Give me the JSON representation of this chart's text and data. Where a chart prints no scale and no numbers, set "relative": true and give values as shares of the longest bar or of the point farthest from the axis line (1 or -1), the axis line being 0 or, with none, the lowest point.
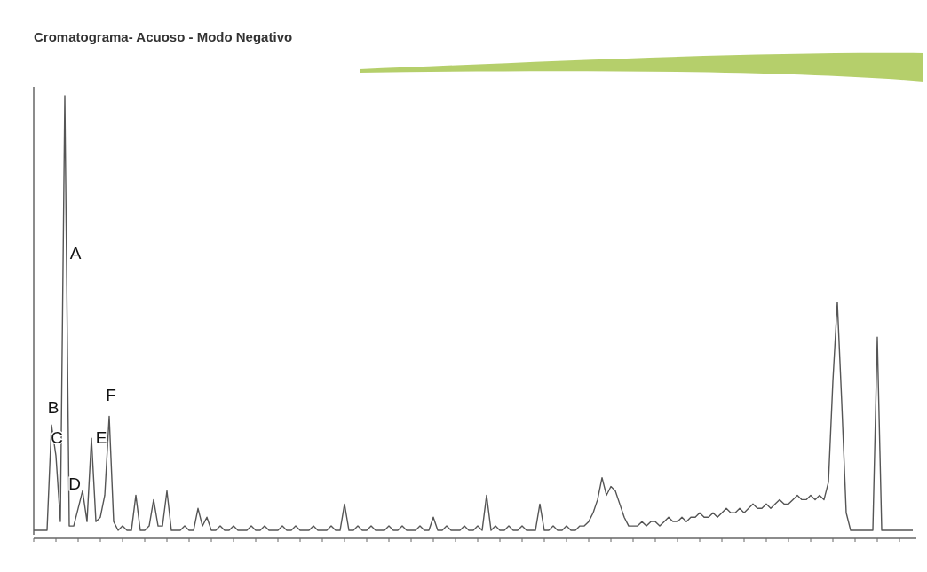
{
  "chart_data": {
    "type": "line",
    "title": "Cromatograma- Acuoso - Modo Negativo",
    "relative": true,
    "color": "#555555",
    "categories": [
      null,
      null,
      null,
      null,
      null,
      null,
      null,
      null,
      null,
      null,
      null,
      null,
      null,
      null,
      null,
      null,
      null,
      null,
      null,
      null,
      null,
      null,
      null,
      null,
      null,
      null,
      null,
      null,
      null,
      null,
      null,
      null,
      null,
      null,
      null,
      null,
      null,
      null,
      null,
      null,
      null,
      null,
      null,
      null,
      null,
      null,
      null,
      null,
      null,
      null,
      null,
      null,
      null,
      null,
      null,
      null,
      null,
      null,
      null,
      null,
      null,
      null,
      null,
      null,
      null,
      null,
      null,
      null,
      null,
      null,
      null,
      null,
      null,
      null,
      null,
      null,
      null,
      null,
      null,
      null,
      null,
      null,
      null,
      null,
      null,
      null,
      null,
      null,
      null,
      null,
      null,
      null,
      null,
      null,
      null,
      null,
      null,
      null,
      null,
      null,
      null,
      null,
      null,
      null,
      null,
      null,
      null,
      null,
      null,
      null,
      null,
      null,
      null,
      null,
      null,
      null,
      null,
      null,
      null,
      null,
      null,
      null,
      null,
      null,
      null,
      null,
      null,
      null,
      null,
      null,
      null,
      null,
      null,
      null,
      null,
      null,
      null,
      null,
      null,
      null,
      null,
      null,
      null,
      null,
      null,
      null,
      null,
      null,
      null,
      null,
      null,
      null,
      null,
      null,
      null,
      null,
      null,
      null,
      null,
      null,
      null,
      null,
      null,
      null,
      null,
      null,
      null,
      null,
      null,
      null,
      null,
      null,
      null,
      null,
      null,
      null,
      null,
      null,
      null,
      null,
      null,
      null,
      null,
      null,
      null,
      null,
      null,
      null,
      null,
      null,
      null,
      null,
      null,
      null,
      null,
      null,
      null,
      null,
      null
    ],
    "values": [
      0.01,
      0.01,
      0.01,
      0.01,
      0.25,
      0.18,
      0.03,
      1,
      0.02,
      0.02,
      0.06,
      0.1,
      0.03,
      0.22,
      0.03,
      0.04,
      0.09,
      0.27,
      0.03,
      0.01,
      0.02,
      0.01,
      0.01,
      0.09,
      0.01,
      0.01,
      0.02,
      0.08,
      0.02,
      0.02,
      0.1,
      0.01,
      0.01,
      0.01,
      0.02,
      0.01,
      0.01,
      0.06,
      0.02,
      0.04,
      0.01,
      0.01,
      0.02,
      0.01,
      0.01,
      0.02,
      0.01,
      0.01,
      0.01,
      0.02,
      0.01,
      0.01,
      0.02,
      0.01,
      0.01,
      0.01,
      0.02,
      0.01,
      0.01,
      0.02,
      0.01,
      0.01,
      0.01,
      0.02,
      0.01,
      0.01,
      0.01,
      0.02,
      0.01,
      0.01,
      0.07,
      0.01,
      0.01,
      0.02,
      0.01,
      0.01,
      0.02,
      0.01,
      0.01,
      0.01,
      0.02,
      0.01,
      0.01,
      0.02,
      0.01,
      0.01,
      0.01,
      0.02,
      0.01,
      0.01,
      0.04,
      0.01,
      0.01,
      0.02,
      0.01,
      0.01,
      0.01,
      0.02,
      0.01,
      0.01,
      0.02,
      0.01,
      0.09,
      0.01,
      0.02,
      0.01,
      0.01,
      0.02,
      0.01,
      0.01,
      0.02,
      0.01,
      0.01,
      0.01,
      0.07,
      0.01,
      0.01,
      0.02,
      0.01,
      0.01,
      0.02,
      0.01,
      0.01,
      0.02,
      0.02,
      0.03,
      0.05,
      0.08,
      0.13,
      0.09,
      0.11,
      0.1,
      0.07,
      0.04,
      0.02,
      0.02,
      0.02,
      0.03,
      0.02,
      0.03,
      0.03,
      0.02,
      0.03,
      0.04,
      0.03,
      0.03,
      0.04,
      0.03,
      0.04,
      0.04,
      0.05,
      0.04,
      0.04,
      0.05,
      0.04,
      0.05,
      0.06,
      0.05,
      0.05,
      0.06,
      0.05,
      0.06,
      0.07,
      0.06,
      0.06,
      0.07,
      0.06,
      0.07,
      0.08,
      0.07,
      0.07,
      0.08,
      0.09,
      0.08,
      0.08,
      0.09,
      0.08,
      0.09,
      0.08,
      0.12,
      0.35,
      0.53,
      0.3,
      0.05,
      0.01,
      0.01,
      0.01,
      0.01,
      0.01,
      0.01,
      0.45,
      0.01,
      0.01,
      0.01,
      0.01,
      0.01,
      0.01,
      0.01,
      0.01
    ],
    "annotations": [
      "A",
      "B",
      "C",
      "D",
      "E",
      "F"
    ]
  }
}
